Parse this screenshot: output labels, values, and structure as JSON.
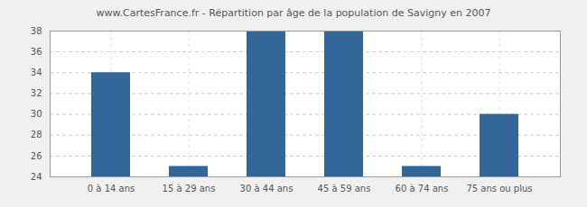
{
  "chart_data": {
    "type": "bar",
    "title": "www.CartesFrance.fr - Répartition par âge de la population de Savigny en 2007",
    "categories": [
      "0 à 14 ans",
      "15 à 29 ans",
      "30 à 44 ans",
      "45 à 59 ans",
      "60 à 74 ans",
      "75 ans ou plus"
    ],
    "values": [
      34,
      25,
      38,
      38,
      25,
      30
    ],
    "color": "#336699",
    "ylim": [
      24,
      38
    ],
    "yticks": [
      24,
      26,
      28,
      30,
      32,
      34,
      36,
      38
    ],
    "grid": true
  }
}
